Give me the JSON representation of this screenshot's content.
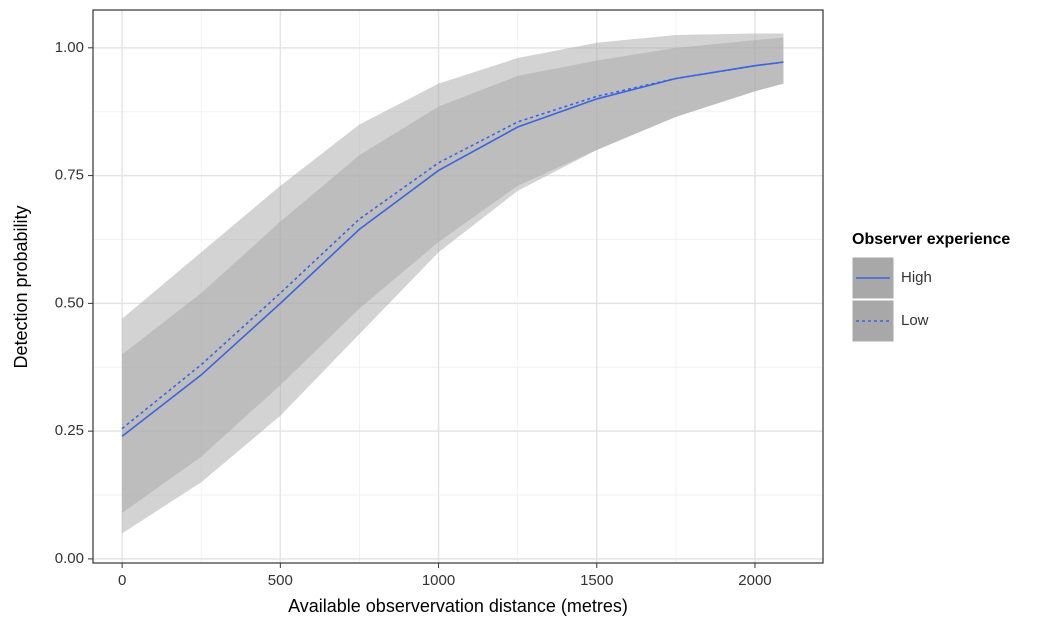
{
  "chart_data": {
    "type": "line",
    "xlabel": "Available observervation distance (metres)",
    "ylabel": "Detection probability",
    "legend_title": "Observer experience",
    "legend": "right",
    "grid": true,
    "x": [
      0,
      250,
      500,
      750,
      1000,
      1250,
      1500,
      1750,
      2000,
      2090
    ],
    "series": [
      {
        "name": "High",
        "color": "#3b64e0",
        "dash": "solid",
        "band_color": "#a8a8a8",
        "values": [
          0.24,
          0.36,
          0.5,
          0.645,
          0.76,
          0.845,
          0.9,
          0.94,
          0.965,
          0.972
        ],
        "lower": [
          0.09,
          0.2,
          0.34,
          0.49,
          0.62,
          0.73,
          0.8,
          0.865,
          0.915,
          0.93
        ],
        "upper": [
          0.4,
          0.52,
          0.66,
          0.79,
          0.885,
          0.945,
          0.975,
          1.0,
          1.015,
          1.02
        ]
      },
      {
        "name": "Low",
        "color": "#3b64e0",
        "dash": "dotted",
        "band_color": "#a8a8a8",
        "values": [
          0.255,
          0.38,
          0.52,
          0.665,
          0.775,
          0.855,
          0.905,
          0.94,
          0.965,
          0.972
        ],
        "lower": [
          0.05,
          0.15,
          0.28,
          0.44,
          0.6,
          0.72,
          0.8,
          0.865,
          0.915,
          0.93
        ],
        "upper": [
          0.47,
          0.6,
          0.73,
          0.85,
          0.93,
          0.98,
          1.01,
          1.025,
          1.028,
          1.028
        ]
      }
    ],
    "xlim": [
      -92,
      2215
    ],
    "ylim": [
      -0.008,
      1.074
    ],
    "xticks": [
      0,
      500,
      1000,
      1500,
      2000
    ],
    "xminor": [
      250,
      750,
      1250,
      1750
    ],
    "yticks": [
      {
        "value": 0,
        "label": "0.00"
      },
      {
        "value": 0.25,
        "label": "0.25"
      },
      {
        "value": 0.5,
        "label": "0.50"
      },
      {
        "value": 0.75,
        "label": "0.75"
      },
      {
        "value": 1,
        "label": "1.00"
      }
    ],
    "yminor": [
      0.125,
      0.375,
      0.625,
      0.875
    ]
  }
}
